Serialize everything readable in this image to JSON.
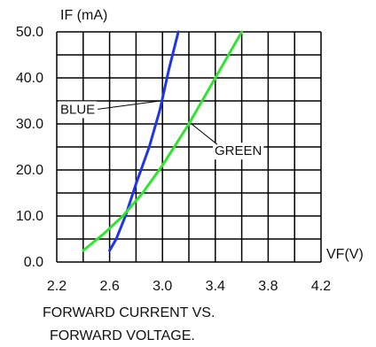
{
  "chart_data": {
    "type": "line",
    "ylabel": "IF (mA)",
    "xlabel": "VF(V)",
    "title_lines": [
      "FORWARD CURRENT VS.",
      "FORWARD VOLTAGE."
    ],
    "xlim": [
      2.2,
      4.2
    ],
    "ylim": [
      0.0,
      50.0
    ],
    "x_ticks": [
      "2.2",
      "2.6",
      "3.0",
      "3.4",
      "3.8",
      "4.2"
    ],
    "y_ticks": [
      "0.0",
      "10.0",
      "20.0",
      "30.0",
      "40.0",
      "50.0"
    ],
    "x_grid_step": 0.2,
    "y_grid_step": 5.0,
    "grid": true,
    "series": [
      {
        "name": "BLUE",
        "color": "#1f35e8",
        "x": [
          2.6,
          2.65,
          2.72,
          2.8,
          2.9,
          2.98,
          3.05,
          3.12
        ],
        "y": [
          2.5,
          5.0,
          10.0,
          17.0,
          25.0,
          33.0,
          42.0,
          50.0
        ]
      },
      {
        "name": "GREEN",
        "color": "#2fe52f",
        "x": [
          2.4,
          2.55,
          2.7,
          2.85,
          3.0,
          3.1,
          3.2,
          3.3,
          3.4,
          3.5,
          3.6
        ],
        "y": [
          2.5,
          6.0,
          10.0,
          15.0,
          21.0,
          25.5,
          30.0,
          35.0,
          40.0,
          45.0,
          50.0
        ]
      }
    ],
    "annotations": [
      {
        "text": "BLUE",
        "series": "BLUE",
        "point": [
          2.98,
          35.0
        ],
        "label_anchor": "left"
      },
      {
        "text": "GREEN",
        "series": "GREEN",
        "point": [
          3.22,
          30.0
        ],
        "label_anchor": "right-bottom"
      }
    ]
  }
}
